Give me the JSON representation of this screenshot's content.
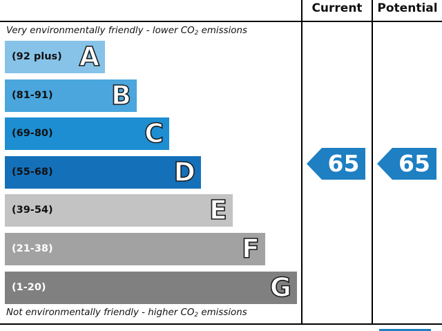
{
  "headers": {
    "current": "Current",
    "potential": "Potential"
  },
  "notes": {
    "top_prefix": "Very environmentally friendly - lower C",
    "top_co2": "O",
    "top_sub": "2",
    "top_suffix": " emissions",
    "bottom_prefix": "Not environmentally friendly - higher C",
    "bottom_co2": "O",
    "bottom_sub": "2",
    "bottom_suffix": " emissions"
  },
  "chart_data": {
    "type": "bar",
    "categories": [
      "A",
      "B",
      "C",
      "D",
      "E",
      "F",
      "G"
    ],
    "bands": [
      {
        "letter": "A",
        "range": "(92 plus)",
        "color": "#87c3e8",
        "range_color": "#111111"
      },
      {
        "letter": "B",
        "range": "(81-91)",
        "color": "#4aa6dd",
        "range_color": "#111111"
      },
      {
        "letter": "C",
        "range": "(69-80)",
        "color": "#1e8ed2",
        "range_color": "#111111"
      },
      {
        "letter": "D",
        "range": "(55-68)",
        "color": "#1570ba",
        "range_color": "#111111"
      },
      {
        "letter": "E",
        "range": "(39-54)",
        "color": "#c3c3c3",
        "range_color": "#111111"
      },
      {
        "letter": "F",
        "range": "(21-38)",
        "color": "#a2a2a2",
        "range_color": "#ffffff"
      },
      {
        "letter": "G",
        "range": "(1-20)",
        "color": "#808080",
        "range_color": "#ffffff"
      }
    ],
    "current": {
      "value": "65",
      "band": "D",
      "color": "#1e7fc2"
    },
    "potential": {
      "value": "65",
      "band": "D",
      "color": "#1e7fc2"
    }
  }
}
